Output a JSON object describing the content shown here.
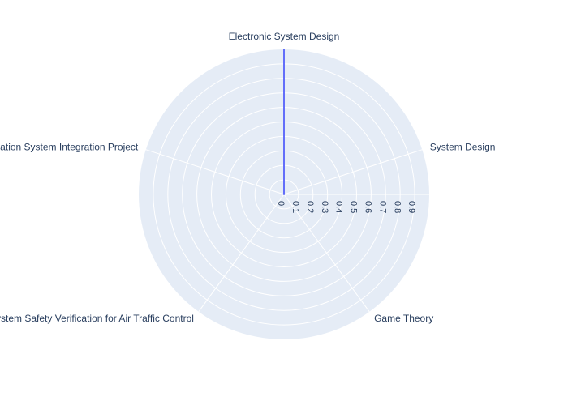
{
  "chart_data": {
    "type": "radar",
    "categories": [
      "Electronic System Design",
      "System Design",
      "Game Theory",
      "System Safety Verification for Air Traffic Control",
      "Information System Integration Project"
    ],
    "series": [
      {
        "values": [
          1,
          0,
          0,
          0,
          0
        ]
      }
    ],
    "radial_ticks": [
      "0",
      "0.1",
      "0.2",
      "0.3",
      "0.4",
      "0.5",
      "0.6",
      "0.7",
      "0.8",
      "0.9"
    ],
    "rlim": [
      0,
      1
    ],
    "grid": true,
    "colors": {
      "background": "#e5ecf6",
      "grid": "#ffffff",
      "series": "#636efa",
      "text": "#2a3f5f"
    }
  }
}
